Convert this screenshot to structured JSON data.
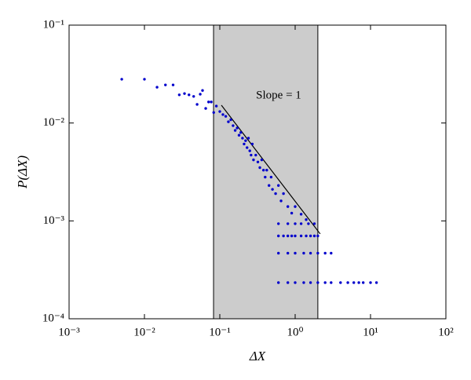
{
  "chart_data": {
    "type": "scatter",
    "xlabel": "ΔX",
    "ylabel": "P(ΔX)",
    "annotation": "Slope = 1",
    "xscale": "log",
    "yscale": "log",
    "xlim": [
      0.001,
      100
    ],
    "ylim": [
      0.0001,
      0.1
    ],
    "xticks": [
      {
        "value": 0.001,
        "label": "10⁻³"
      },
      {
        "value": 0.01,
        "label": "10⁻²"
      },
      {
        "value": 0.1,
        "label": "10⁻¹"
      },
      {
        "value": 1,
        "label": "10⁰"
      },
      {
        "value": 10,
        "label": "10¹"
      },
      {
        "value": 100,
        "label": "10²"
      }
    ],
    "yticks": [
      {
        "value": 0.0001,
        "label": "10⁻⁴"
      },
      {
        "value": 0.001,
        "label": "10⁻³"
      },
      {
        "value": 0.01,
        "label": "10⁻²"
      },
      {
        "value": 0.1,
        "label": "10⁻¹"
      }
    ],
    "shaded_region": [
      0.0826,
      2.0
    ],
    "shade_color": "#cccccc",
    "fit_line": {
      "x": [
        0.105,
        2.15
      ],
      "y": [
        0.0152,
        0.000736
      ],
      "color": "#000000"
    },
    "series": [
      {
        "color": "#0000cc",
        "x": [
          0.005,
          0.01,
          0.0147,
          0.019,
          0.024,
          0.029,
          0.034,
          0.039,
          0.045,
          0.05,
          0.055,
          0.059,
          0.065,
          0.071,
          0.077,
          0.083,
          0.09,
          0.1,
          0.11,
          0.12,
          0.13,
          0.14,
          0.15,
          0.16,
          0.17,
          0.18,
          0.19,
          0.2,
          0.21,
          0.22,
          0.23,
          0.24,
          0.25,
          0.26,
          0.27,
          0.28,
          0.3,
          0.32,
          0.34,
          0.36,
          0.38,
          0.4,
          0.42,
          0.45,
          0.48,
          0.5,
          0.55,
          0.6,
          0.65,
          0.7,
          0.8,
          0.9,
          1.0,
          1.2,
          1.4,
          0.6,
          0.8,
          1,
          1.2,
          1.5,
          1.8,
          0.6,
          0.7,
          0.8,
          0.9,
          1,
          1.2,
          1.4,
          1.6,
          1.8,
          2.0,
          0.6,
          0.8,
          1,
          1.3,
          1.6,
          2,
          2.5,
          3,
          0.6,
          0.8,
          1,
          1.3,
          1.6,
          2,
          2.5,
          3,
          4,
          5,
          6,
          7,
          8,
          10,
          12
        ],
        "y": [
          0.028,
          0.028,
          0.0232,
          0.0245,
          0.0245,
          0.0194,
          0.02,
          0.0194,
          0.0187,
          0.0155,
          0.0197,
          0.0215,
          0.0141,
          0.0164,
          0.0164,
          0.0128,
          0.0149,
          0.0131,
          0.0122,
          0.0117,
          0.0103,
          0.0108,
          0.0094,
          0.0084,
          0.0089,
          0.0075,
          0.008,
          0.007,
          0.0061,
          0.0066,
          0.0056,
          0.007,
          0.0052,
          0.0047,
          0.0061,
          0.0042,
          0.0047,
          0.004,
          0.0035,
          0.0042,
          0.0033,
          0.0028,
          0.0033,
          0.0023,
          0.0028,
          0.0021,
          0.0019,
          0.0023,
          0.0016,
          0.0019,
          0.0014,
          0.0012,
          0.0014,
          0.00117,
          0.00103,
          0.000936,
          0.000936,
          0.000936,
          0.000936,
          0.000936,
          0.000936,
          0.000702,
          0.000702,
          0.000702,
          0.000702,
          0.000702,
          0.000702,
          0.000702,
          0.000702,
          0.000702,
          0.000702,
          0.000468,
          0.000468,
          0.000468,
          0.000468,
          0.000468,
          0.000468,
          0.000468,
          0.000468,
          0.000234,
          0.000234,
          0.000234,
          0.000234,
          0.000234,
          0.000234,
          0.000234,
          0.000234,
          0.000234,
          0.000234,
          0.000234,
          0.000234,
          0.000234,
          0.000234,
          0.000234
        ]
      }
    ]
  }
}
